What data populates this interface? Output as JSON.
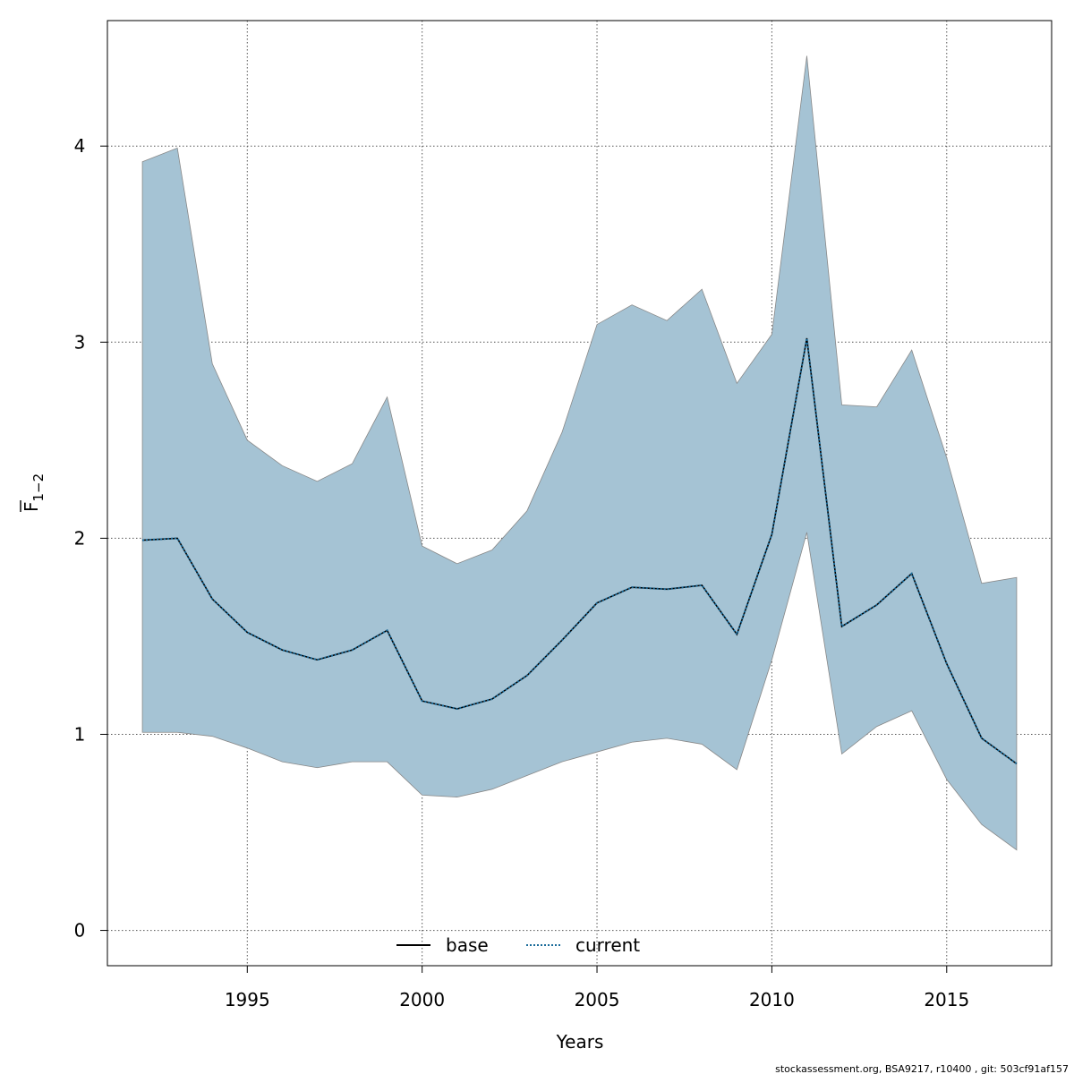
{
  "chart_data": {
    "type": "area",
    "xlabel": "Years",
    "ylabel": "F",
    "ylabel_subscript": "1−2",
    "xlim": [
      1991,
      2018
    ],
    "ylim": [
      -0.18,
      4.64
    ],
    "xticks": [
      1995,
      2000,
      2005,
      2010,
      2015
    ],
    "yticks": [
      0,
      1,
      2,
      3,
      4
    ],
    "grid": true,
    "legend_position": "bottom-center",
    "x": [
      1992,
      1993,
      1994,
      1995,
      1996,
      1997,
      1998,
      1999,
      2000,
      2001,
      2002,
      2003,
      2004,
      2005,
      2006,
      2007,
      2008,
      2009,
      2010,
      2011,
      2012,
      2013,
      2014,
      2015,
      2016,
      2017
    ],
    "band": {
      "upper": [
        3.92,
        3.99,
        2.89,
        2.5,
        2.37,
        2.29,
        2.38,
        2.72,
        1.96,
        1.87,
        1.94,
        2.14,
        2.54,
        3.09,
        3.19,
        3.11,
        3.27,
        2.79,
        3.04,
        4.46,
        2.68,
        2.67,
        2.96,
        2.41,
        1.77,
        1.8
      ],
      "lower": [
        1.01,
        1.01,
        0.99,
        0.93,
        0.86,
        0.83,
        0.86,
        0.86,
        0.69,
        0.68,
        0.72,
        0.79,
        0.86,
        0.91,
        0.96,
        0.98,
        0.95,
        0.82,
        1.38,
        2.03,
        0.9,
        1.04,
        1.12,
        0.77,
        0.54,
        0.41
      ],
      "fill_color": "#a5c3d4",
      "edge_color": "#888888"
    },
    "series": [
      {
        "name": "base",
        "style": "solid",
        "color": "#000000",
        "values": [
          1.99,
          2.0,
          1.69,
          1.52,
          1.43,
          1.38,
          1.43,
          1.53,
          1.17,
          1.13,
          1.18,
          1.3,
          1.48,
          1.67,
          1.75,
          1.74,
          1.76,
          1.51,
          2.02,
          3.02,
          1.55,
          1.66,
          1.82,
          1.36,
          0.98,
          0.85
        ]
      },
      {
        "name": "current",
        "style": "dotted",
        "color": "#1a6b9a",
        "values": [
          1.99,
          2.0,
          1.69,
          1.52,
          1.43,
          1.38,
          1.43,
          1.53,
          1.17,
          1.13,
          1.18,
          1.3,
          1.48,
          1.67,
          1.75,
          1.74,
          1.76,
          1.51,
          2.02,
          3.02,
          1.55,
          1.66,
          1.82,
          1.36,
          0.98,
          0.85
        ]
      }
    ]
  },
  "footer": "stockassessment.org, BSA9217, r10400 , git: 503cf91af157"
}
